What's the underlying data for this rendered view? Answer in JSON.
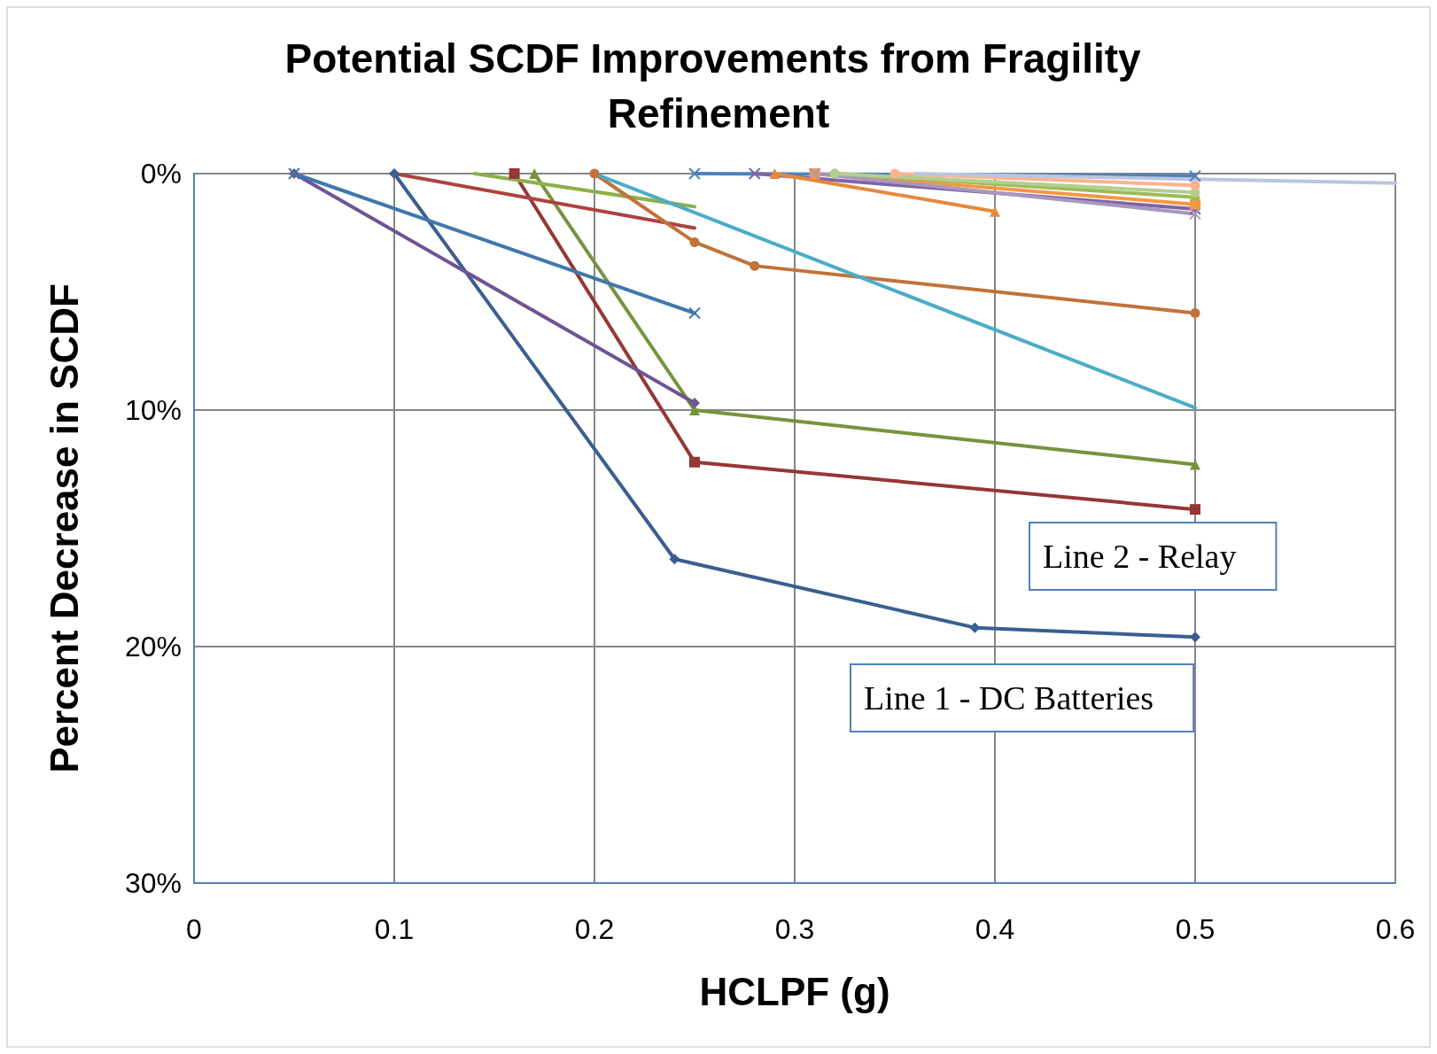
{
  "chart_data": {
    "type": "line",
    "title": "Potential SCDF Improvements from Fragility Refinement",
    "xlabel": "HCLPF (g)",
    "ylabel": "Percent Decrease in SCDF",
    "xlim": [
      0,
      0.6
    ],
    "xticks": [
      0,
      0.1,
      0.2,
      0.3,
      0.4,
      0.5,
      0.6
    ],
    "ylim": [
      30,
      0
    ],
    "yticks": [
      {
        "value": 0,
        "label": "0%"
      },
      {
        "value": 10,
        "label": "10%"
      },
      {
        "value": 20,
        "label": "20%"
      },
      {
        "value": 30,
        "label": "30%"
      }
    ],
    "grid": true,
    "line_style": "solid",
    "annotations": [
      "Line 2 - Relay",
      "Line 1 - DC Batteries"
    ],
    "series": [
      {
        "color": "#3a5f8f",
        "marker": "diamond",
        "x": [
          0.1,
          0.24,
          0.39,
          0.5
        ],
        "values": [
          0,
          16.3,
          19.2,
          19.6
        ]
      },
      {
        "color": "#953735",
        "marker": "square",
        "x": [
          0.16,
          0.25,
          0.5
        ],
        "values": [
          0,
          12.2,
          14.2
        ]
      },
      {
        "color": "#77933c",
        "marker": "triangle",
        "x": [
          0.17,
          0.25,
          0.5
        ],
        "values": [
          0,
          10,
          12.3
        ]
      },
      {
        "color": "#6e5494",
        "marker": "diamond",
        "x": [
          0.05,
          0.25
        ],
        "values": [
          0,
          9.7
        ]
      },
      {
        "color": "#3f77ad",
        "marker": "cross",
        "x": [
          0.05,
          0.25
        ],
        "values": [
          0,
          5.9
        ]
      },
      {
        "color": "#ab4340",
        "marker": "none",
        "x": [
          0.1,
          0.25
        ],
        "values": [
          0,
          2.3
        ]
      },
      {
        "color": "#8cb04a",
        "marker": "none",
        "x": [
          0.14,
          0.25
        ],
        "values": [
          0,
          1.4
        ]
      },
      {
        "color": "#c0733a",
        "marker": "circle",
        "x": [
          0.2,
          0.25,
          0.28,
          0.5
        ],
        "values": [
          0,
          2.9,
          3.9,
          5.9
        ]
      },
      {
        "color": "#4bacc6",
        "marker": "none",
        "x": [
          0.2,
          0.5
        ],
        "values": [
          0,
          9.9
        ]
      },
      {
        "color": "#4f81bd",
        "marker": "cross",
        "x": [
          0.25,
          0.5
        ],
        "values": [
          0,
          0.1
        ]
      },
      {
        "color": "#8064a2",
        "marker": "cross",
        "x": [
          0.28,
          0.5
        ],
        "values": [
          0,
          1.5
        ]
      },
      {
        "color": "#e38a3c",
        "marker": "triangle",
        "x": [
          0.29,
          0.4
        ],
        "values": [
          0,
          1.6
        ]
      },
      {
        "color": "#f79646",
        "marker": "square",
        "x": [
          0.31,
          0.5
        ],
        "values": [
          0,
          1.3
        ]
      },
      {
        "color": "#a598c0",
        "marker": "cross",
        "x": [
          0.31,
          0.5
        ],
        "values": [
          0,
          1.7
        ]
      },
      {
        "color": "#9bbb59",
        "marker": "diamond",
        "x": [
          0.32,
          0.5
        ],
        "values": [
          0,
          1.0
        ]
      },
      {
        "color": "#b3cf8f",
        "marker": "circle",
        "x": [
          0.32,
          0.5
        ],
        "values": [
          0,
          0.8
        ]
      },
      {
        "color": "#f9b48f",
        "marker": "circle",
        "x": [
          0.35,
          0.5
        ],
        "values": [
          0,
          0.5
        ]
      },
      {
        "color": "#b9c6df",
        "marker": "none",
        "x": [
          0.36,
          0.6
        ],
        "values": [
          0,
          0.4
        ]
      }
    ]
  }
}
